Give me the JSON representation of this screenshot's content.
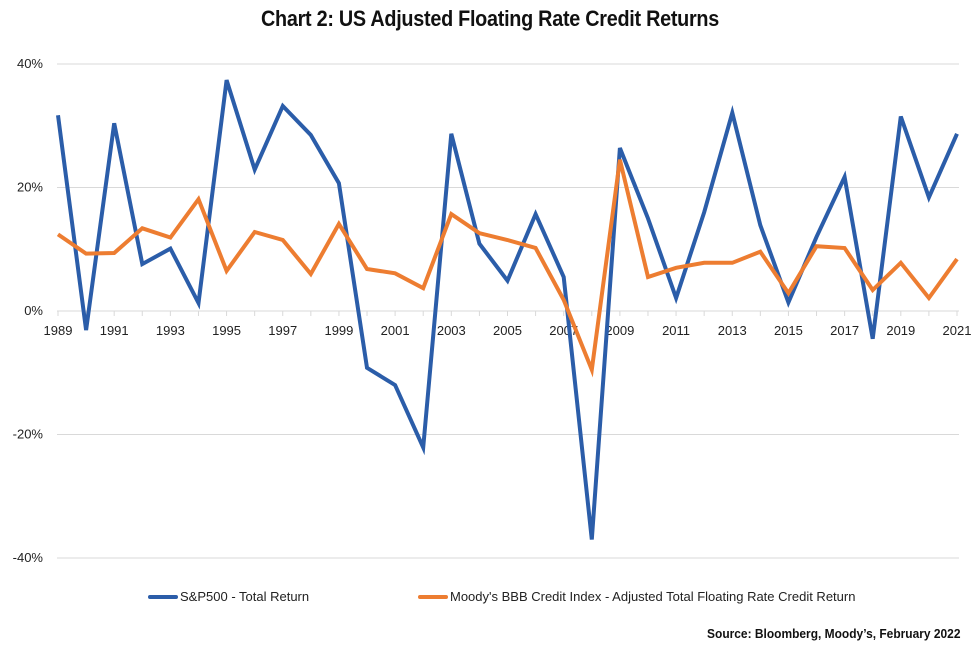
{
  "chart_data": {
    "type": "line",
    "title": "Chart 2: US Adjusted Floating Rate Credit Returns",
    "xlabel": "",
    "ylabel": "",
    "x": [
      1989,
      1990,
      1991,
      1992,
      1993,
      1994,
      1995,
      1996,
      1997,
      1998,
      1999,
      2000,
      2001,
      2002,
      2003,
      2004,
      2005,
      2006,
      2007,
      2008,
      2009,
      2010,
      2011,
      2012,
      2013,
      2014,
      2015,
      2016,
      2017,
      2018,
      2019,
      2020,
      2021
    ],
    "x_tick_labels": [
      "1989",
      "1991",
      "1993",
      "1995",
      "1997",
      "1999",
      "2001",
      "2003",
      "2005",
      "2007",
      "2009",
      "2011",
      "2013",
      "2015",
      "2017",
      "2019",
      "2021"
    ],
    "ylim": [
      -40,
      40
    ],
    "y_ticks": [
      40,
      20,
      0,
      -20,
      -40
    ],
    "y_tick_labels": [
      "40%",
      "20%",
      "0%",
      "-20%",
      "-40%"
    ],
    "grid": true,
    "legend_position": "bottom",
    "series": [
      {
        "name": "S&P500 - Total Return",
        "color": "#2B5DA9",
        "values": [
          31.7,
          -3.1,
          30.4,
          7.6,
          10.1,
          1.3,
          37.4,
          22.9,
          33.2,
          28.5,
          20.7,
          -9.2,
          -12.0,
          -22.1,
          28.7,
          10.9,
          4.9,
          15.7,
          5.5,
          -37.0,
          26.4,
          15.0,
          2.1,
          16.0,
          32.1,
          13.9,
          1.4,
          12.0,
          21.7,
          -4.5,
          31.5,
          18.4,
          28.7
        ]
      },
      {
        "name": "Moody's BBB Credit Index - Adjusted Total Floating Rate Credit Return",
        "color": "#ED7D31",
        "values": [
          12.4,
          9.3,
          9.4,
          13.4,
          11.9,
          18.1,
          6.5,
          12.8,
          11.5,
          6.0,
          14.1,
          6.8,
          6.1,
          3.7,
          15.7,
          12.6,
          11.5,
          10.2,
          1.8,
          -9.5,
          24.5,
          5.5,
          7.0,
          7.8,
          7.8,
          9.6,
          2.9,
          10.5,
          10.2,
          3.4,
          7.8,
          2.1,
          8.4
        ]
      }
    ]
  },
  "source": "Source: Bloomberg, Moody’s, February 2022"
}
